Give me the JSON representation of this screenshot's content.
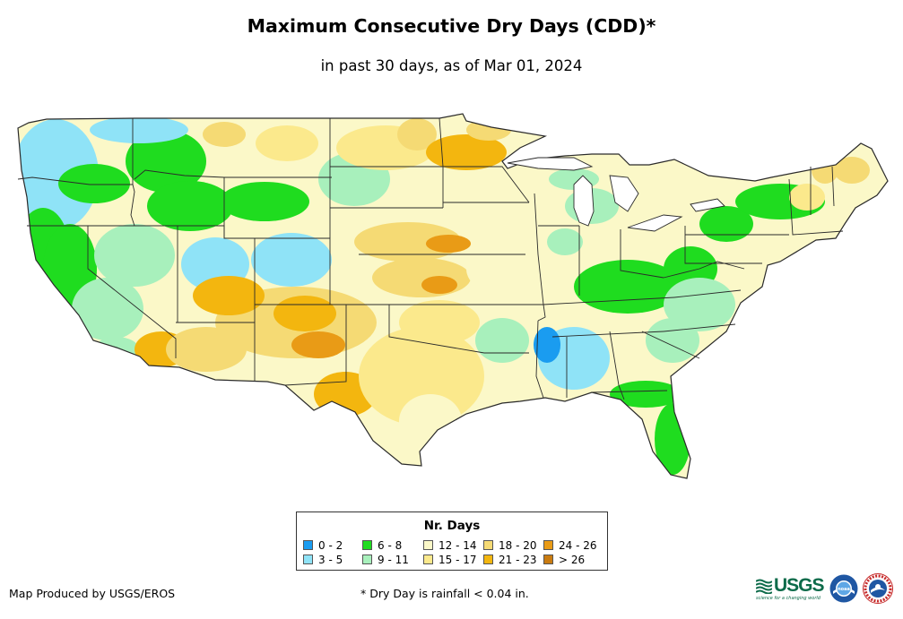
{
  "map": {
    "title": "Maximum Consecutive Dry Days (CDD)*",
    "subtitle": "in past 30 days, as of Mar 01, 2024",
    "region": "Contiguous United States"
  },
  "legend": {
    "title": "Nr. Days",
    "items": [
      {
        "label": "0 - 2",
        "color": "#1a9cf0"
      },
      {
        "label": "3 - 5",
        "color": "#8fe3f7"
      },
      {
        "label": "6 - 8",
        "color": "#1fdc1f"
      },
      {
        "label": "9 - 11",
        "color": "#a8f0bc"
      },
      {
        "label": "12 - 14",
        "color": "#fbf8c8"
      },
      {
        "label": "15 - 17",
        "color": "#fbe98c"
      },
      {
        "label": "18 - 20",
        "color": "#f5da74"
      },
      {
        "label": "21 - 23",
        "color": "#f3b60f"
      },
      {
        "label": "24 - 26",
        "color": "#e99b16"
      },
      {
        "label": "> 26",
        "color": "#c97b10"
      }
    ]
  },
  "footer": {
    "credit": "Map Produced by USGS/EROS",
    "footnote": "* Dry Day is rainfall < 0.04 in."
  },
  "logos": {
    "usgs_word": "USGS",
    "usgs_tagline": "science for a changing world",
    "noaa_word": "noaa"
  },
  "colors": {
    "state_border": "#2a2a2a",
    "usgs_green": "#0d6b4a",
    "noaa_blue": "#1f57a3"
  }
}
